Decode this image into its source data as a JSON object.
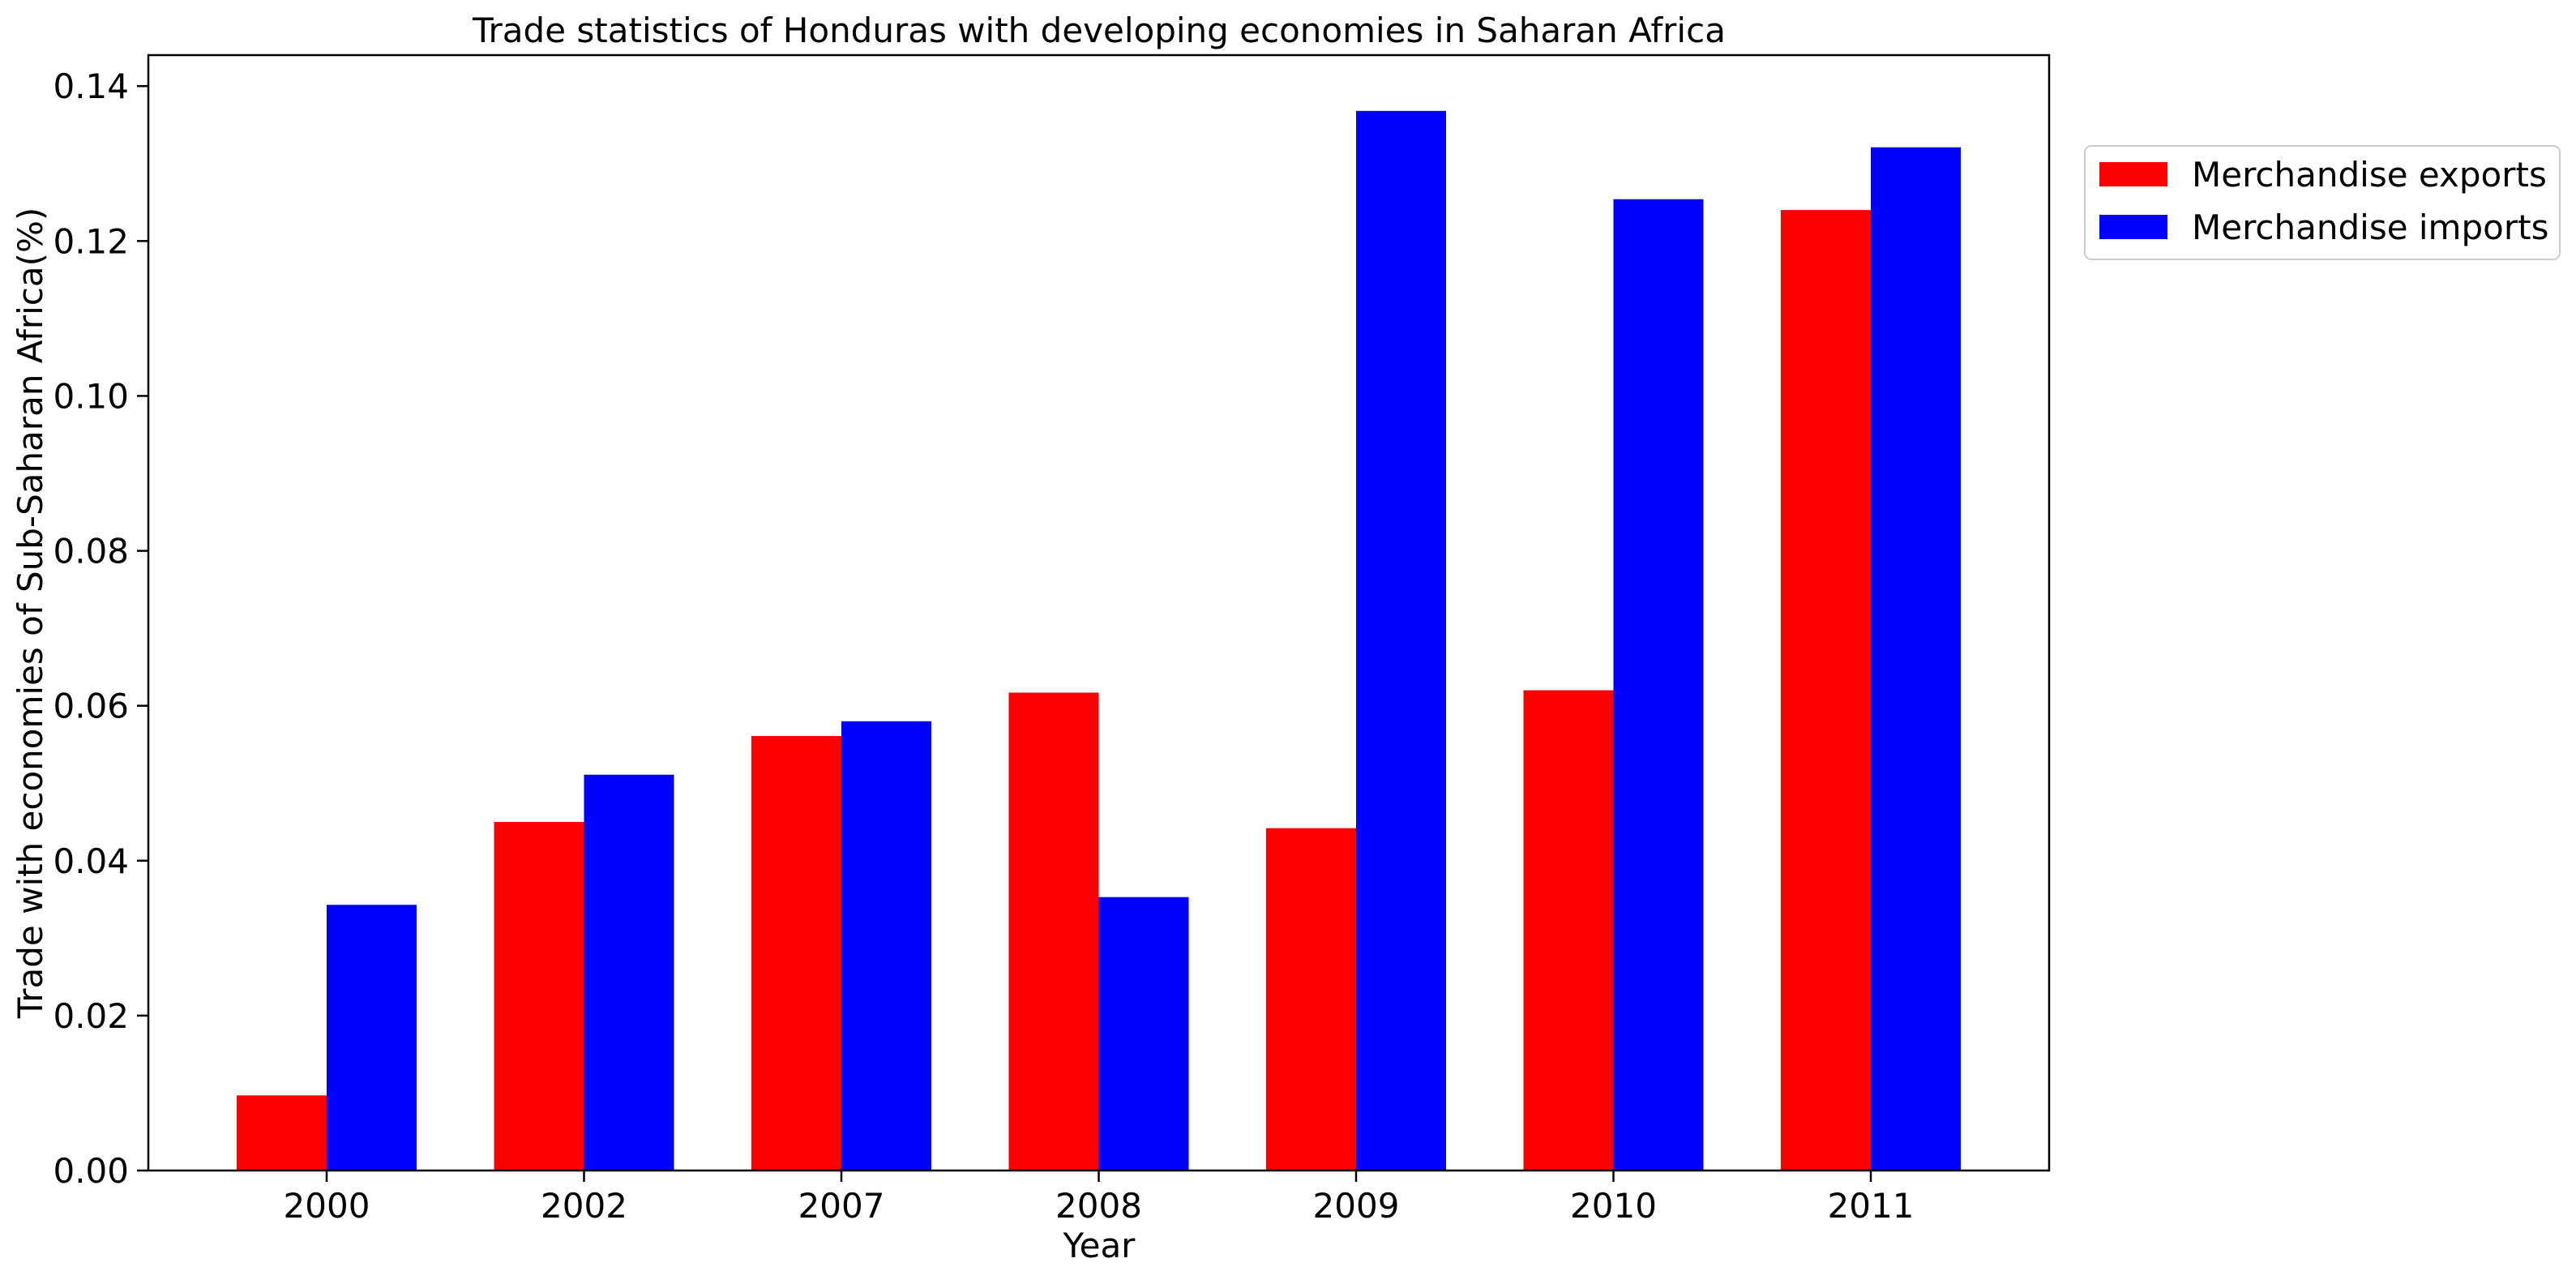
{
  "chart_data": {
    "type": "bar",
    "title": "Trade statistics of Honduras with developing economies in Saharan Africa",
    "xlabel": "Year",
    "ylabel": "Trade with economies of Sub-Saharan Africa(%)",
    "categories": [
      "2000",
      "2002",
      "2007",
      "2008",
      "2009",
      "2010",
      "2011"
    ],
    "series": [
      {
        "name": "Merchandise exports",
        "color": "#ff0000",
        "values": [
          0.0097,
          0.045,
          0.0561,
          0.0617,
          0.0442,
          0.062,
          0.124
        ]
      },
      {
        "name": "Merchandise imports",
        "color": "#0000ff",
        "values": [
          0.0343,
          0.0511,
          0.058,
          0.0353,
          0.1368,
          0.1254,
          0.1321
        ]
      }
    ],
    "ylim": [
      0,
      0.144
    ],
    "yticks": [
      "0.00",
      "0.02",
      "0.04",
      "0.06",
      "0.08",
      "0.10",
      "0.12",
      "0.14"
    ],
    "grid": false,
    "legend_position": "outside top-right"
  }
}
